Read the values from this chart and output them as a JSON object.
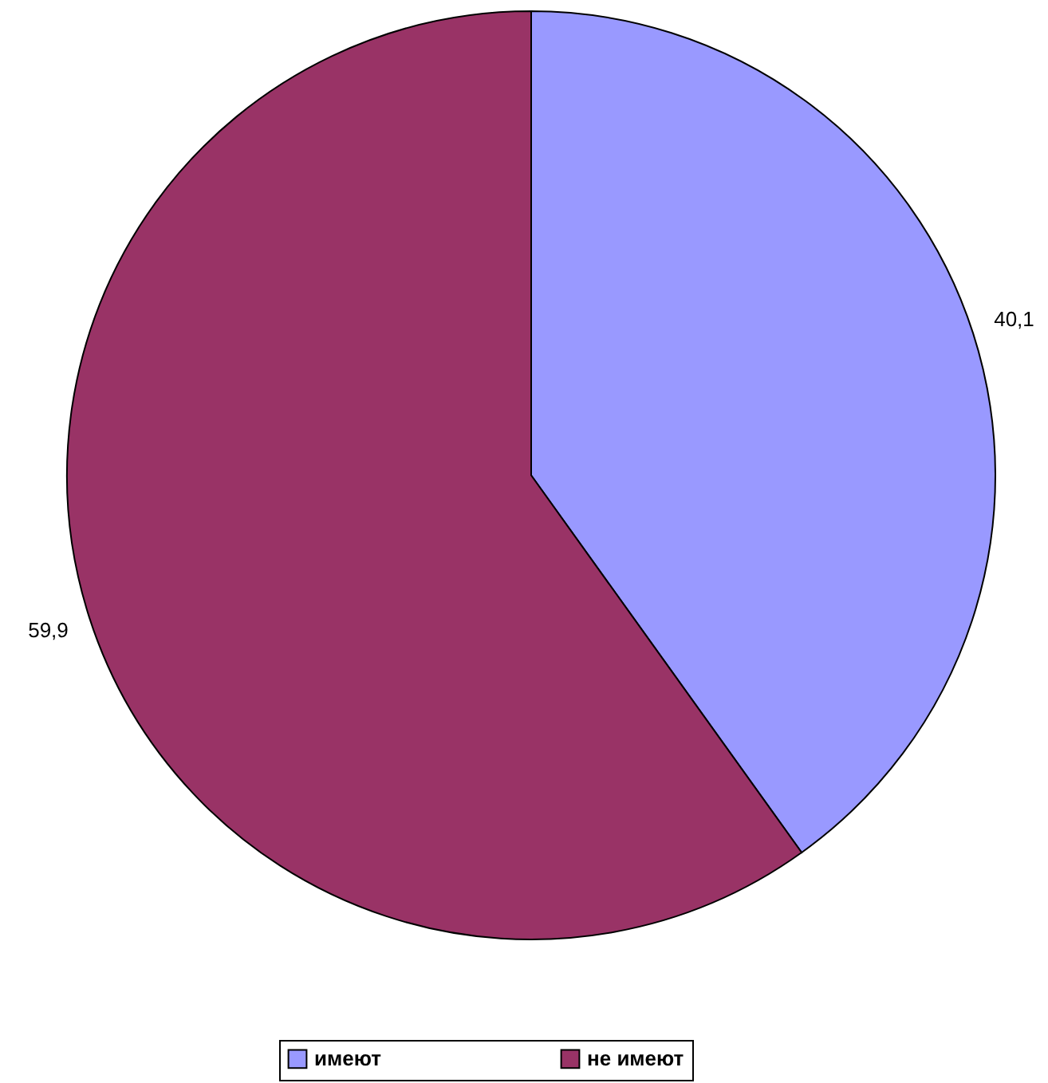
{
  "chart_data": {
    "type": "pie",
    "categories": [
      "имеют",
      "не имеют"
    ],
    "values": [
      40.1,
      59.9
    ],
    "colors": [
      "#9999ff",
      "#993366"
    ],
    "value_labels": [
      "40,1",
      "59,9"
    ],
    "legend": "bottom"
  }
}
